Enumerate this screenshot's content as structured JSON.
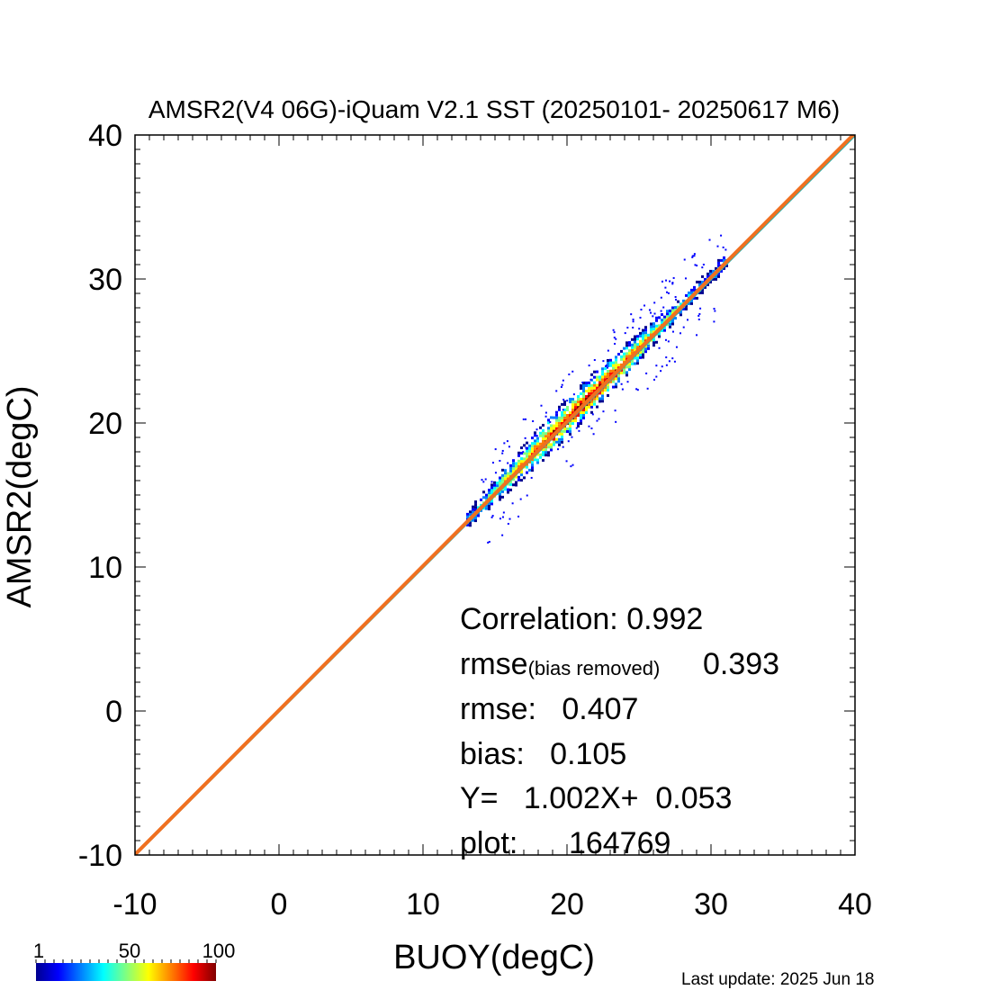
{
  "chart_data": {
    "type": "heatmap",
    "title": "AMSR2(V4 06G)-iQuam V2.1 SST (20250101- 20250617 M6)",
    "xlabel": "BUOY(degC)",
    "ylabel": "AMSR2(degC)",
    "xlim": [
      -10,
      40
    ],
    "ylim": [
      -10,
      40
    ],
    "xticks": [
      -10,
      0,
      10,
      20,
      30,
      40
    ],
    "yticks": [
      -10,
      0,
      10,
      20,
      30,
      40
    ],
    "grid": false,
    "density_range": [
      1,
      100
    ],
    "density_ticks": [
      "1",
      "50",
      "100"
    ],
    "colormap": [
      "#00008f",
      "#0000ff",
      "#0080ff",
      "#00ffff",
      "#80ff80",
      "#ffff00",
      "#ff8000",
      "#ff0000",
      "#800000"
    ],
    "point_cloud": {
      "x_range": [
        13,
        31
      ],
      "main_diagonal_offset": 0.1,
      "spread_degC": 1.0
    },
    "lines": [
      {
        "name": "one-to-one",
        "color": "#20b0b0",
        "slope": 1.0,
        "intercept": 0.0
      },
      {
        "name": "regression",
        "color": "#f07020",
        "slope": 1.002,
        "intercept": 0.053
      }
    ],
    "annotations": {
      "correlation": "Correlation:  0.992",
      "rmse_br_prefix": "rmse",
      "rmse_br_sub": "(bias removed)",
      "rmse_br_value": "0.393",
      "rmse": "rmse:   0.407",
      "bias": "bias:   0.105",
      "fit": "Y=   1.002X+  0.053",
      "plot": "plot:      164769"
    }
  },
  "footer": {
    "last_update": "Last update: 2025 Jun 18"
  }
}
